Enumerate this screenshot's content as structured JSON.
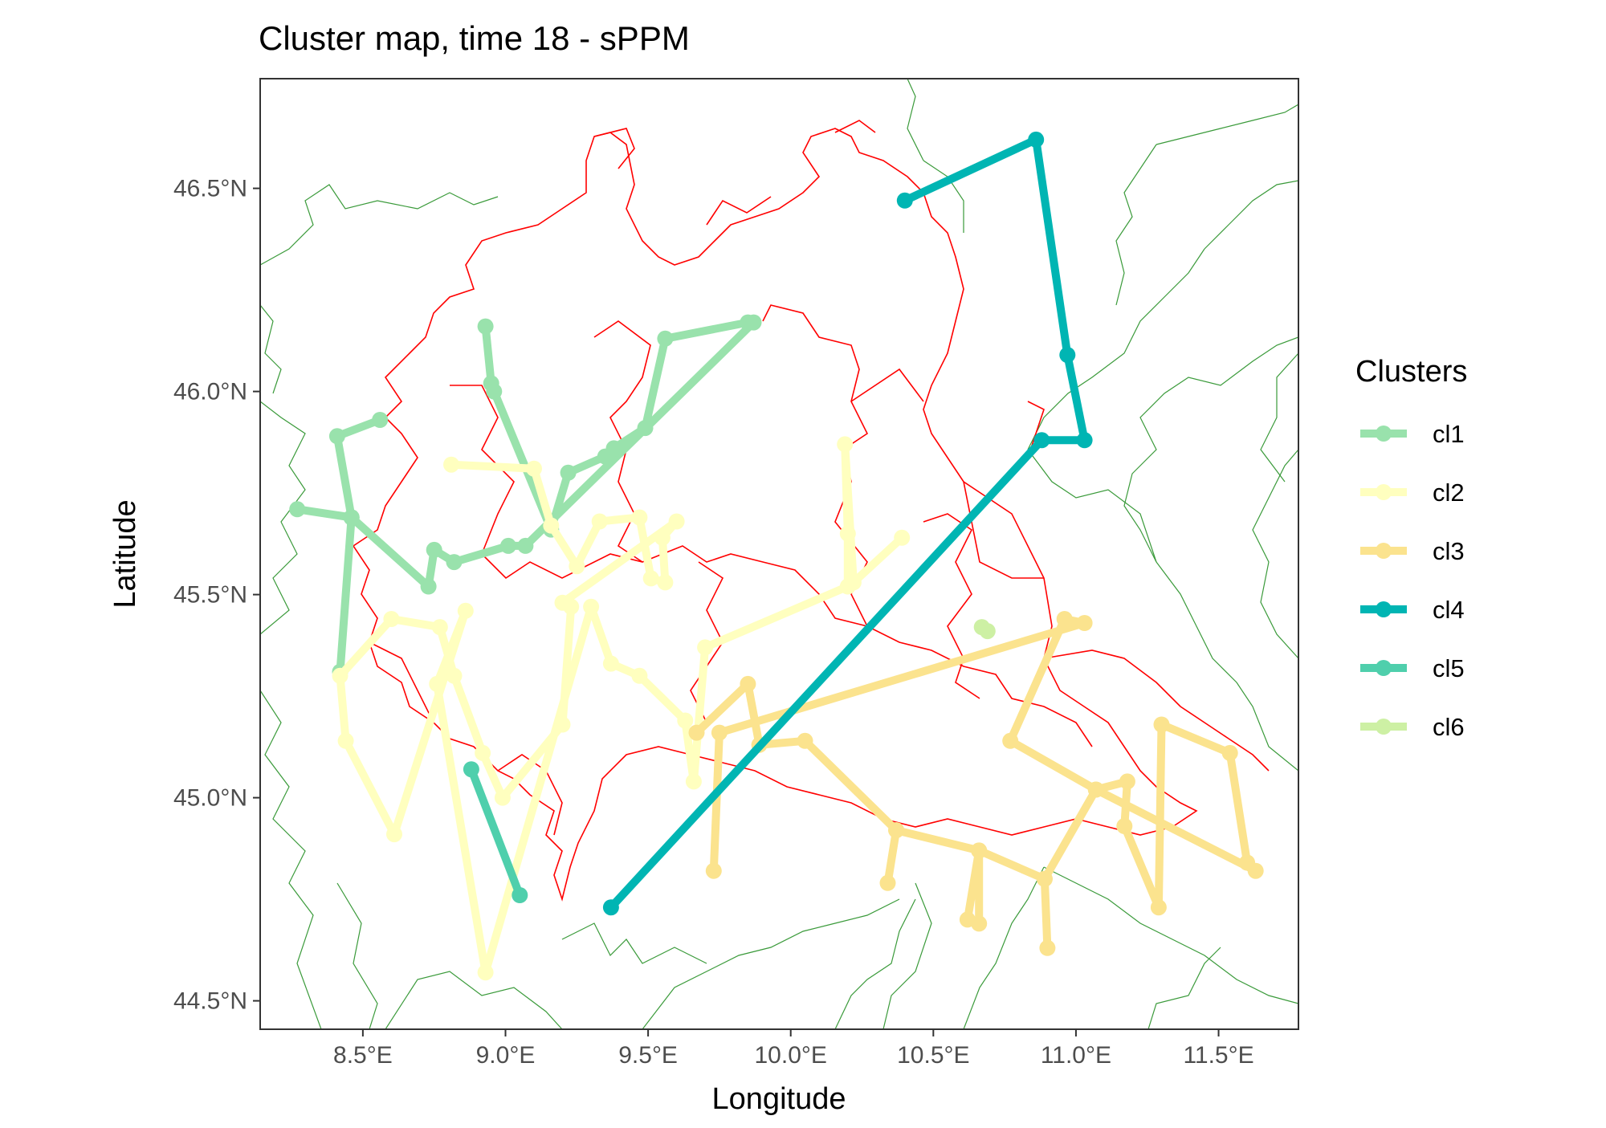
{
  "title": "Cluster map, time 18 - sPPM",
  "x_axis": {
    "label": "Longitude",
    "range": [
      8.14,
      11.78
    ],
    "ticks": [
      {
        "value": 8.5,
        "label": "8.5°E"
      },
      {
        "value": 9.0,
        "label": "9.0°E"
      },
      {
        "value": 9.5,
        "label": "9.5°E"
      },
      {
        "value": 10.0,
        "label": "10.0°E"
      },
      {
        "value": 10.5,
        "label": "10.5°E"
      },
      {
        "value": 11.0,
        "label": "11.0°E"
      },
      {
        "value": 11.5,
        "label": "11.5°E"
      }
    ]
  },
  "y_axis": {
    "label": "Latitude",
    "range": [
      44.43,
      46.77
    ],
    "ticks": [
      {
        "value": 44.5,
        "label": "44.5°N"
      },
      {
        "value": 45.0,
        "label": "45.0°N"
      },
      {
        "value": 45.5,
        "label": "45.5°N"
      },
      {
        "value": 46.0,
        "label": "46.0°N"
      },
      {
        "value": 46.5,
        "label": "46.5°N"
      }
    ]
  },
  "legend": {
    "title": "Clusters",
    "position": "right",
    "items": [
      {
        "label": "cl1",
        "color": "#99e2ac"
      },
      {
        "label": "cl2",
        "color": "#ffffbf"
      },
      {
        "label": "cl3",
        "color": "#fbe38e"
      },
      {
        "label": "cl4",
        "color": "#00b5b3"
      },
      {
        "label": "cl5",
        "color": "#4fcfac"
      },
      {
        "label": "cl6",
        "color": "#cdf0a4"
      }
    ]
  },
  "colors": {
    "region_border": "#ff0000",
    "province_border": "#3a9a3a",
    "panel_border": "#333333",
    "text": "#000000",
    "tick_text": "#4d4d4d"
  },
  "chart_data": {
    "type": "scatter",
    "series": [
      {
        "name": "cl1",
        "points": [
          [
            8.93,
            46.16
          ],
          [
            8.95,
            46.02
          ],
          [
            8.96,
            46.0
          ],
          [
            9.16,
            45.66
          ],
          [
            9.22,
            45.8
          ],
          [
            9.35,
            45.84
          ],
          [
            9.38,
            45.86
          ],
          [
            9.49,
            45.91
          ],
          [
            9.56,
            46.13
          ],
          [
            9.85,
            46.17
          ],
          [
            9.87,
            46.17
          ],
          [
            9.07,
            45.62
          ],
          [
            9.01,
            45.62
          ],
          [
            8.82,
            45.58
          ],
          [
            8.75,
            45.61
          ],
          [
            8.73,
            45.52
          ],
          [
            8.46,
            45.69
          ],
          [
            8.42,
            45.31
          ],
          [
            8.46,
            45.69
          ],
          [
            8.27,
            45.71
          ],
          [
            8.46,
            45.69
          ],
          [
            8.41,
            45.89
          ],
          [
            8.56,
            45.93
          ]
        ]
      },
      {
        "name": "cl2",
        "points": [
          [
            8.81,
            45.82
          ],
          [
            9.1,
            45.81
          ],
          [
            9.16,
            45.67
          ],
          [
            9.25,
            45.57
          ],
          [
            9.33,
            45.68
          ],
          [
            9.47,
            45.69
          ],
          [
            9.51,
            45.54
          ],
          [
            9.56,
            45.53
          ],
          [
            9.55,
            45.64
          ],
          [
            9.6,
            45.68
          ],
          [
            9.2,
            45.48
          ],
          [
            9.23,
            45.47
          ],
          [
            9.2,
            45.18
          ],
          [
            8.99,
            45.0
          ],
          [
            8.92,
            45.11
          ],
          [
            8.82,
            45.3
          ],
          [
            8.77,
            45.42
          ],
          [
            8.6,
            45.44
          ],
          [
            8.42,
            45.3
          ],
          [
            8.44,
            45.14
          ],
          [
            8.61,
            44.91
          ],
          [
            8.86,
            45.46
          ],
          [
            8.76,
            45.28
          ],
          [
            8.93,
            44.57
          ],
          [
            9.3,
            45.47
          ],
          [
            9.37,
            45.33
          ],
          [
            9.47,
            45.3
          ],
          [
            9.63,
            45.19
          ],
          [
            9.66,
            45.04
          ],
          [
            9.7,
            45.37
          ],
          [
            10.2,
            45.52
          ],
          [
            10.2,
            45.65
          ],
          [
            10.19,
            45.87
          ],
          [
            10.22,
            45.53
          ],
          [
            10.39,
            45.64
          ]
        ]
      },
      {
        "name": "cl3",
        "points": [
          [
            9.67,
            45.16
          ],
          [
            9.85,
            45.28
          ],
          [
            9.89,
            45.13
          ],
          [
            10.05,
            45.14
          ],
          [
            10.37,
            44.92
          ],
          [
            10.34,
            44.79
          ],
          [
            10.37,
            44.92
          ],
          [
            10.66,
            44.87
          ],
          [
            10.62,
            44.7
          ],
          [
            10.66,
            44.69
          ],
          [
            10.66,
            44.87
          ],
          [
            10.89,
            44.8
          ],
          [
            10.9,
            44.63
          ],
          [
            10.89,
            44.8
          ],
          [
            11.07,
            45.02
          ],
          [
            11.18,
            45.04
          ],
          [
            11.17,
            44.93
          ],
          [
            11.29,
            44.73
          ],
          [
            11.3,
            45.18
          ],
          [
            11.54,
            45.11
          ],
          [
            11.6,
            44.84
          ],
          [
            11.63,
            44.82
          ],
          [
            11.07,
            45.02
          ],
          [
            10.77,
            45.14
          ],
          [
            10.96,
            45.44
          ],
          [
            11.03,
            45.43
          ],
          [
            9.75,
            45.16
          ],
          [
            9.73,
            44.82
          ]
        ]
      },
      {
        "name": "cl4",
        "points": [
          [
            9.37,
            44.73
          ],
          [
            10.88,
            45.88
          ],
          [
            11.03,
            45.88
          ],
          [
            10.97,
            46.09
          ],
          [
            10.86,
            46.62
          ],
          [
            10.4,
            46.47
          ]
        ]
      },
      {
        "name": "cl5",
        "points": [
          [
            8.88,
            45.07
          ],
          [
            9.05,
            44.76
          ]
        ]
      },
      {
        "name": "cl6",
        "points": [
          [
            10.67,
            45.42
          ],
          [
            10.69,
            45.41
          ]
        ]
      }
    ]
  }
}
